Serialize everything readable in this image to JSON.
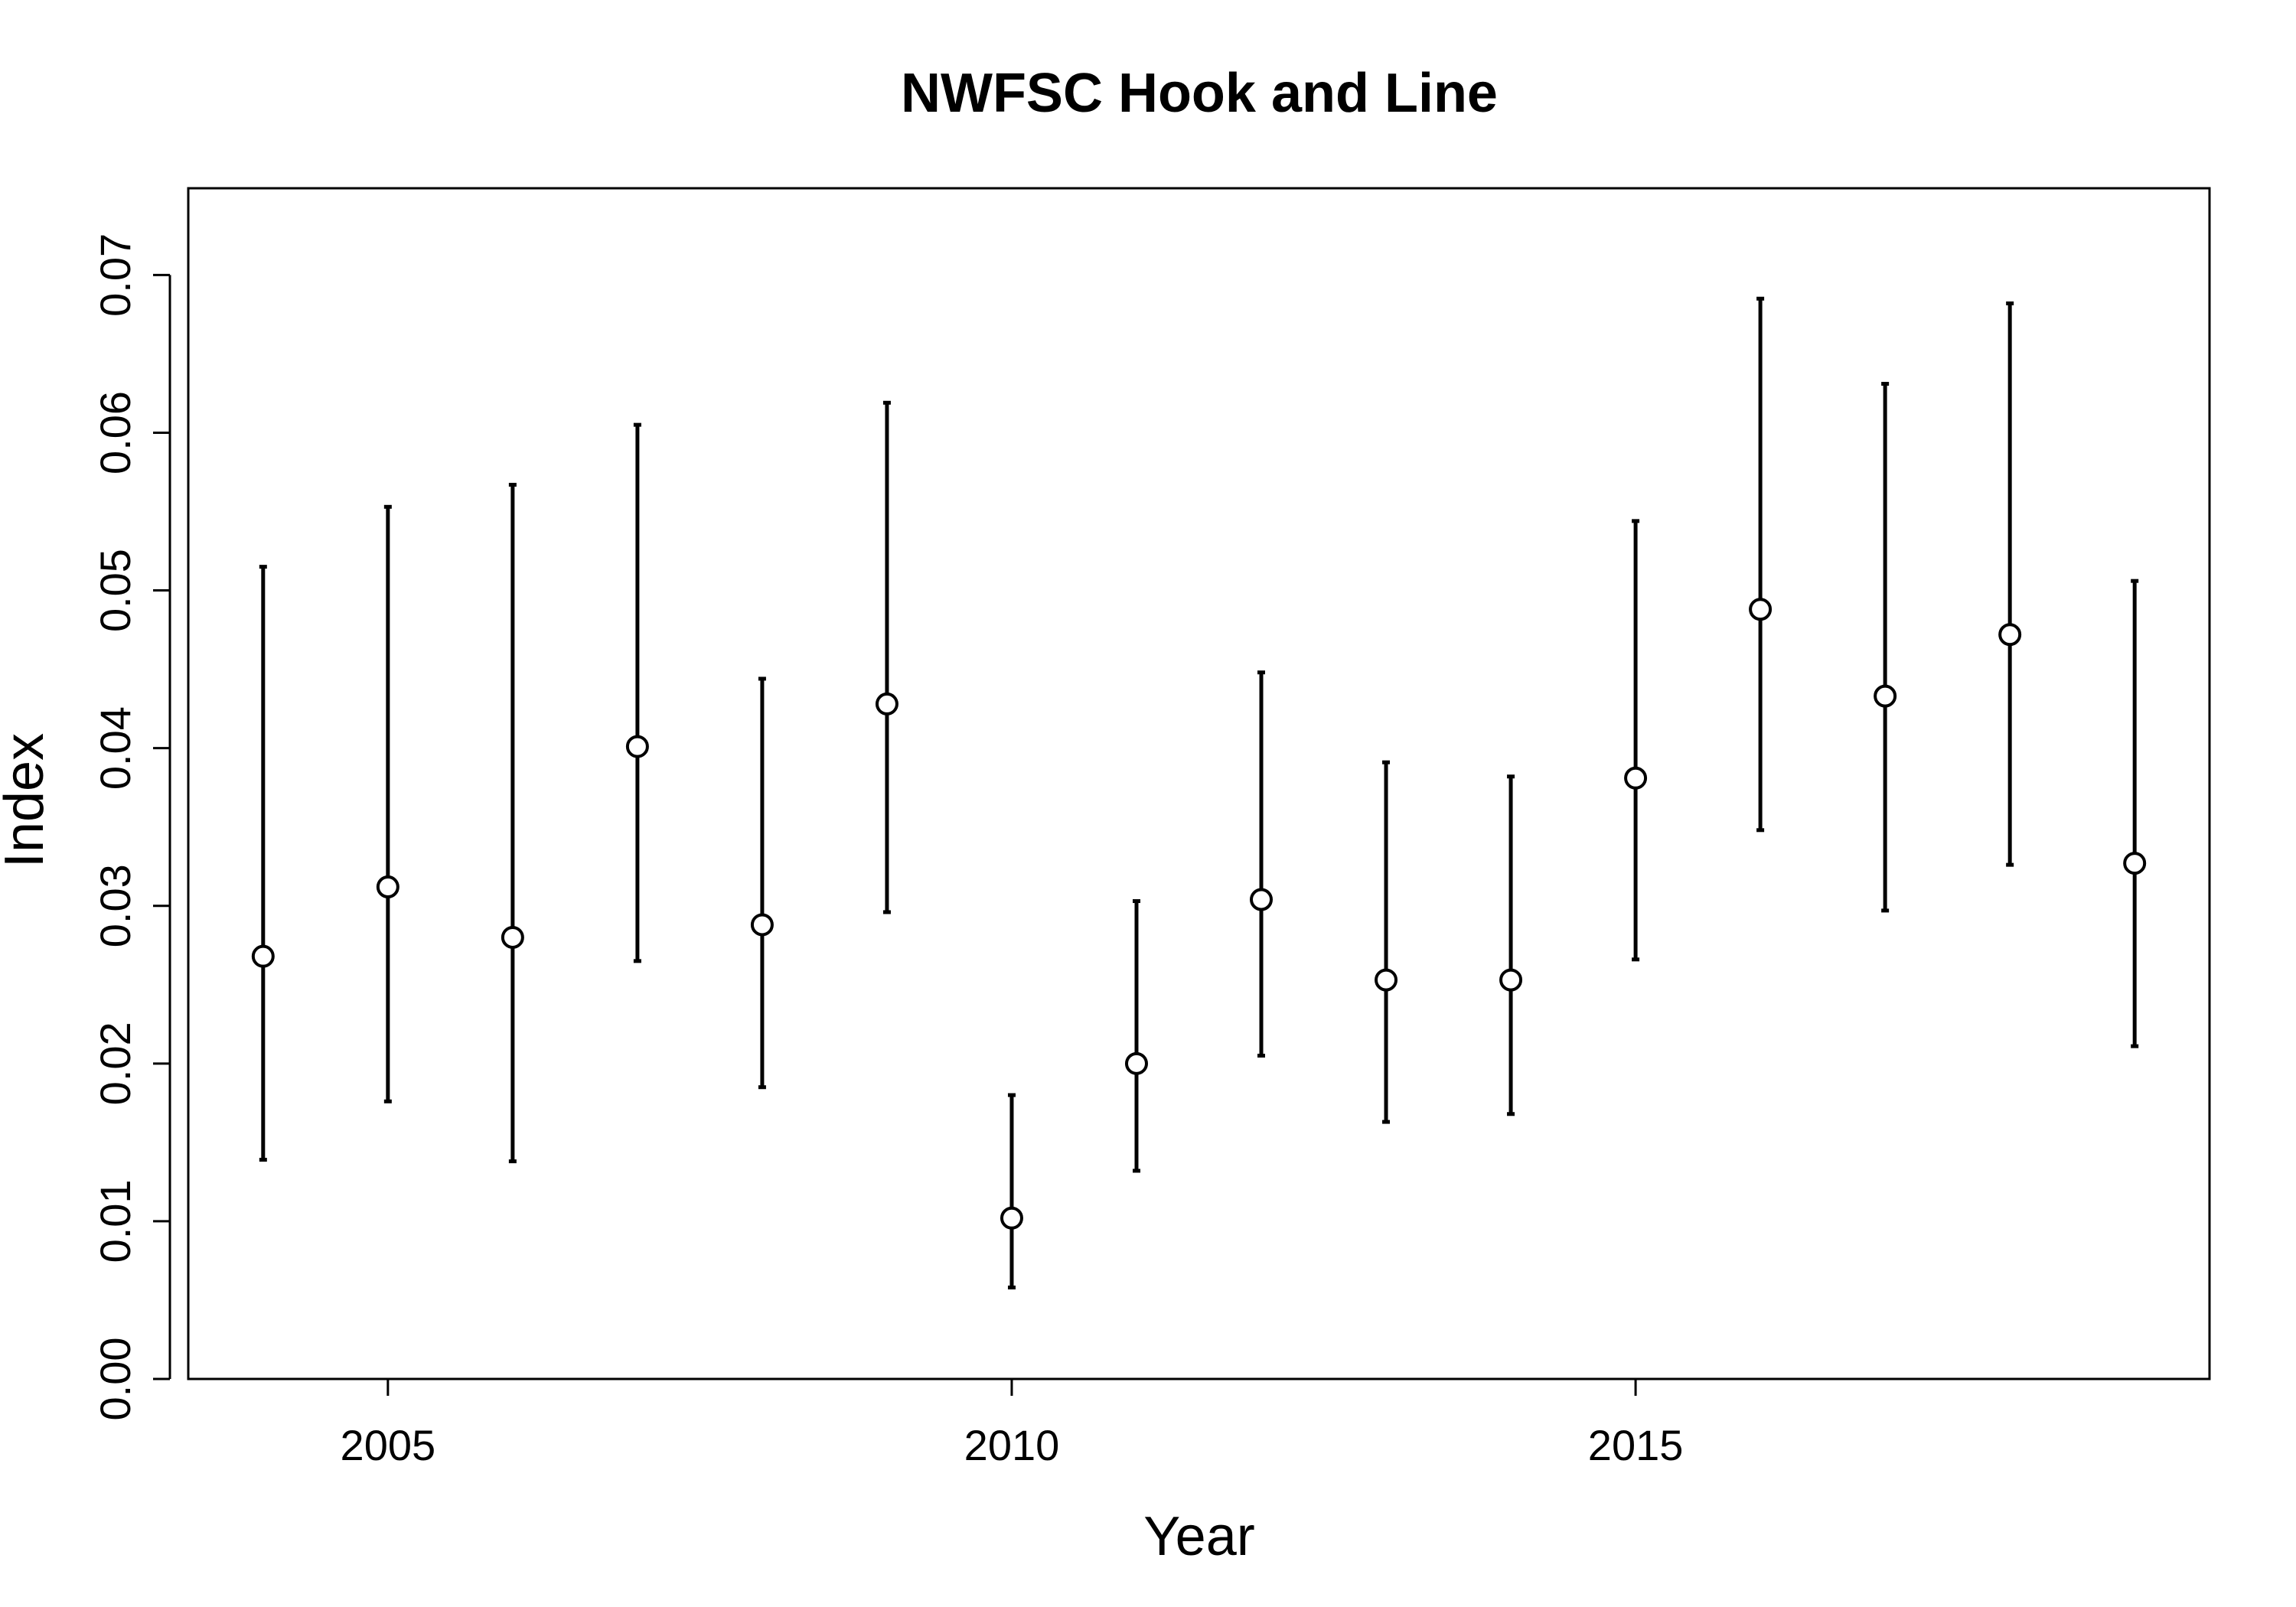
{
  "chart_data": {
    "type": "scatter",
    "title": "NWFSC Hook and Line",
    "xlabel": "Year",
    "ylabel": "Index",
    "x_ticks": [
      2005,
      2010,
      2015
    ],
    "x_tick_labels": [
      "2005",
      "2010",
      "2015"
    ],
    "y_ticks": [
      0.0,
      0.01,
      0.02,
      0.03,
      0.04,
      0.05,
      0.06,
      0.07
    ],
    "y_tick_labels": [
      "0.00",
      "0.01",
      "0.02",
      "0.03",
      "0.04",
      "0.05",
      "0.06",
      "0.07"
    ],
    "xlim": [
      2003.4,
      2019.6
    ],
    "ylim": [
      0.0,
      0.0755
    ],
    "grid": false,
    "legend": "none",
    "marker": "open-circle",
    "error_bars": true,
    "points": [
      {
        "x": 2004,
        "y": 0.0268,
        "lower": 0.0139,
        "upper": 0.0515
      },
      {
        "x": 2005,
        "y": 0.0312,
        "lower": 0.0176,
        "upper": 0.0553
      },
      {
        "x": 2006,
        "y": 0.028,
        "lower": 0.0138,
        "upper": 0.0567
      },
      {
        "x": 2007,
        "y": 0.0401,
        "lower": 0.0265,
        "upper": 0.0605
      },
      {
        "x": 2008,
        "y": 0.0288,
        "lower": 0.0185,
        "upper": 0.0444
      },
      {
        "x": 2009,
        "y": 0.0428,
        "lower": 0.0296,
        "upper": 0.0619
      },
      {
        "x": 2010,
        "y": 0.0102,
        "lower": 0.0058,
        "upper": 0.018
      },
      {
        "x": 2011,
        "y": 0.02,
        "lower": 0.0132,
        "upper": 0.0303
      },
      {
        "x": 2012,
        "y": 0.0304,
        "lower": 0.0205,
        "upper": 0.0448
      },
      {
        "x": 2013,
        "y": 0.0253,
        "lower": 0.0163,
        "upper": 0.0391
      },
      {
        "x": 2014,
        "y": 0.0253,
        "lower": 0.0168,
        "upper": 0.0382
      },
      {
        "x": 2015,
        "y": 0.0381,
        "lower": 0.0266,
        "upper": 0.0544
      },
      {
        "x": 2016,
        "y": 0.0488,
        "lower": 0.0348,
        "upper": 0.0685
      },
      {
        "x": 2017,
        "y": 0.0433,
        "lower": 0.0297,
        "upper": 0.0631
      },
      {
        "x": 2018,
        "y": 0.0472,
        "lower": 0.0326,
        "upper": 0.0682
      },
      {
        "x": 2019,
        "y": 0.0327,
        "lower": 0.0211,
        "upper": 0.0506
      }
    ],
    "colors": {
      "background": "#ffffff",
      "axis": "#000000",
      "error_bar": "#000000",
      "marker_stroke": "#000000",
      "marker_fill": "#ffffff"
    }
  }
}
